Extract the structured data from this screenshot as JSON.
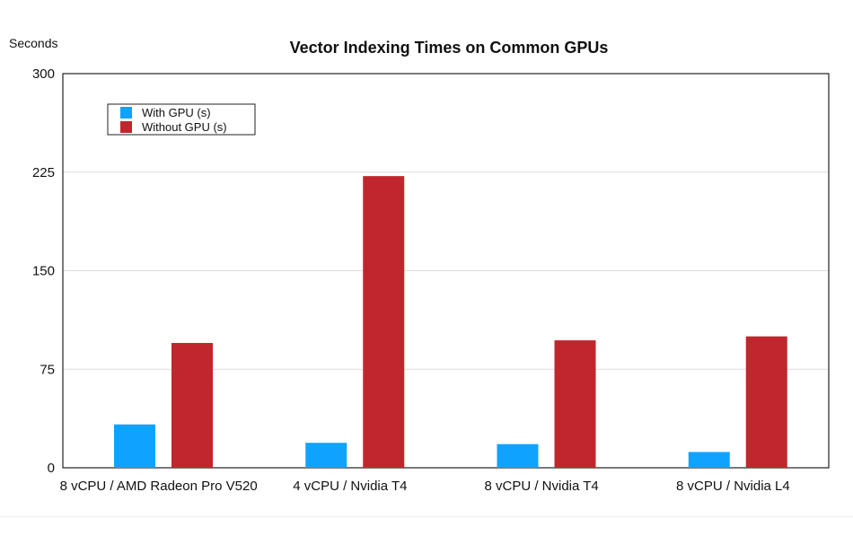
{
  "chart_data": {
    "type": "bar",
    "title": "Vector Indexing Times on Common GPUs",
    "ylabel": "Seconds",
    "xlabel": "",
    "ylim": [
      0,
      300
    ],
    "yticks": [
      "0",
      "75",
      "150",
      "225",
      "300"
    ],
    "grid": true,
    "legend_position": "top-left",
    "categories": [
      "8 vCPU / AMD Radeon Pro V520",
      "4 vCPU / Nvidia T4",
      "8 vCPU / Nvidia T4",
      "8 vCPU / Nvidia L4"
    ],
    "series": [
      {
        "name": "With GPU (s)",
        "color": "#0fa3ff",
        "values": [
          33,
          19,
          18,
          12
        ]
      },
      {
        "name": "Without GPU (s)",
        "color": "#c0272d",
        "values": [
          95,
          222,
          97,
          100
        ]
      }
    ]
  }
}
